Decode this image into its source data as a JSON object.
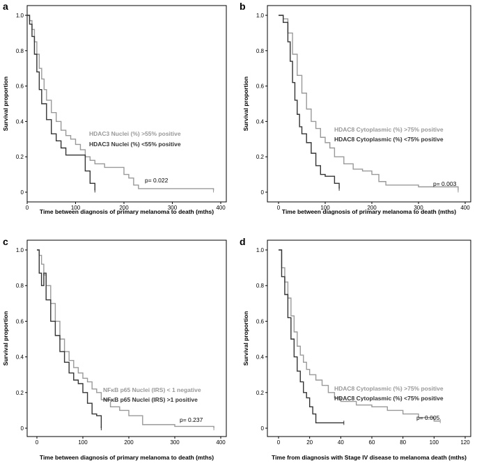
{
  "chart_data": [
    {
      "type": "line",
      "panel": "a",
      "xlabel": "Time between diagnosis of primary melanoma to death (mths)",
      "ylabel": "Survival proportion",
      "xlim": [
        0,
        400
      ],
      "ylim": [
        0,
        1.05
      ],
      "xticks": [
        0,
        100,
        200,
        300,
        400
      ],
      "xtick_labels": [
        "0",
        "100",
        "200",
        "300",
        "400"
      ],
      "yticks": [
        0,
        0.2,
        0.4,
        0.6,
        0.8,
        1.0
      ],
      "ytick_labels": [
        "0",
        "0.2",
        "0.4",
        "0.6",
        "0.8",
        "1.0"
      ],
      "pvalue": "p= 0.022",
      "series": [
        {
          "name": "HDAC3  Nuclei (%) >55% positive",
          "color": "#999999",
          "x": [
            0,
            5,
            10,
            15,
            20,
            25,
            30,
            35,
            40,
            50,
            60,
            70,
            80,
            90,
            100,
            110,
            120,
            130,
            140,
            160,
            180,
            200,
            210,
            220,
            230,
            300,
            385
          ],
          "y": [
            1.0,
            0.97,
            0.92,
            0.85,
            0.78,
            0.7,
            0.64,
            0.58,
            0.52,
            0.45,
            0.4,
            0.35,
            0.32,
            0.3,
            0.27,
            0.24,
            0.2,
            0.18,
            0.16,
            0.14,
            0.14,
            0.1,
            0.08,
            0.04,
            0.02,
            0.02,
            0.01
          ]
        },
        {
          "name": "HDAC3  Nuclei (%) <55% positive",
          "color": "#333333",
          "x": [
            0,
            5,
            10,
            15,
            20,
            25,
            30,
            40,
            50,
            60,
            70,
            80,
            110,
            120,
            130,
            140
          ],
          "y": [
            1.0,
            0.95,
            0.88,
            0.78,
            0.68,
            0.58,
            0.5,
            0.41,
            0.33,
            0.29,
            0.25,
            0.21,
            0.21,
            0.12,
            0.05,
            0.01
          ]
        }
      ]
    },
    {
      "type": "line",
      "panel": "b",
      "xlabel": "Time between diagnosis of primary melanoma to death (mths)",
      "ylabel": "Survival proportion",
      "xlim": [
        0,
        400
      ],
      "ylim": [
        0,
        1.05
      ],
      "xticks": [
        0,
        100,
        200,
        300,
        400
      ],
      "xtick_labels": [
        "0",
        "100",
        "200",
        "300",
        "400"
      ],
      "yticks": [
        0,
        0.2,
        0.4,
        0.6,
        0.8,
        1.0
      ],
      "ytick_labels": [
        "0",
        "0.2",
        "0.4",
        "0.6",
        "0.8",
        "1.0"
      ],
      "pvalue": "p= 0.003",
      "series": [
        {
          "name": "HDAC8  Cytoplasmic (%) >75% positive",
          "color": "#999999",
          "x": [
            0,
            10,
            20,
            30,
            40,
            50,
            60,
            70,
            80,
            90,
            100,
            110,
            120,
            140,
            160,
            180,
            200,
            215,
            230,
            300,
            385
          ],
          "y": [
            1.0,
            0.98,
            0.9,
            0.78,
            0.66,
            0.56,
            0.47,
            0.4,
            0.36,
            0.31,
            0.28,
            0.25,
            0.2,
            0.16,
            0.13,
            0.12,
            0.1,
            0.06,
            0.04,
            0.03,
            0.01
          ]
        },
        {
          "name": "HDAC8  Cytoplasmic (%) <75% positive",
          "color": "#333333",
          "x": [
            0,
            10,
            20,
            25,
            30,
            35,
            40,
            45,
            50,
            60,
            70,
            80,
            90,
            100,
            110,
            120,
            130
          ],
          "y": [
            1.0,
            0.96,
            0.85,
            0.74,
            0.62,
            0.52,
            0.44,
            0.37,
            0.33,
            0.28,
            0.22,
            0.15,
            0.1,
            0.09,
            0.09,
            0.05,
            0.02
          ]
        }
      ]
    },
    {
      "type": "line",
      "panel": "c",
      "xlabel": "Time between diagnosis of primary melanoma to death (mths)",
      "ylabel": "Survival proportion",
      "xlim": [
        0,
        400
      ],
      "ylim": [
        0,
        1.05
      ],
      "xticks": [
        0,
        100,
        200,
        300,
        400
      ],
      "xtick_labels": [
        "0",
        "100",
        "200",
        "300",
        "400"
      ],
      "yticks": [
        0,
        0.2,
        0.4,
        0.6,
        0.8,
        1.0
      ],
      "ytick_labels": [
        "0",
        "0.2",
        "0.4",
        "0.6",
        "0.8",
        "1.0"
      ],
      "pvalue": "p= 0.237",
      "series": [
        {
          "name": "NFκB p65 Nuclei (IRS) < 1 negative",
          "color": "#999999",
          "x": [
            0,
            5,
            10,
            15,
            20,
            30,
            40,
            50,
            60,
            70,
            80,
            90,
            100,
            110,
            120,
            130,
            140,
            160,
            180,
            200,
            230,
            300,
            385
          ],
          "y": [
            1.0,
            0.97,
            0.92,
            0.86,
            0.8,
            0.7,
            0.6,
            0.5,
            0.43,
            0.38,
            0.34,
            0.31,
            0.28,
            0.26,
            0.22,
            0.2,
            0.16,
            0.12,
            0.1,
            0.07,
            0.02,
            0.01,
            0.0
          ]
        },
        {
          "name": "NFκB p65 Nuclei (IRS)  >1 positive",
          "color": "#333333",
          "x": [
            0,
            5,
            10,
            15,
            20,
            30,
            40,
            50,
            60,
            70,
            80,
            90,
            100,
            110,
            120,
            130,
            140
          ],
          "y": [
            1.0,
            0.87,
            0.8,
            0.87,
            0.72,
            0.6,
            0.52,
            0.43,
            0.37,
            0.31,
            0.27,
            0.25,
            0.2,
            0.14,
            0.08,
            0.07,
            0.0
          ]
        }
      ]
    },
    {
      "type": "line",
      "panel": "d",
      "xlabel": "Time from diagnosis with Stage IV disease to melanoma death (mths)",
      "ylabel": "Survival proportion",
      "xlim": [
        0,
        120
      ],
      "ylim": [
        0,
        1.05
      ],
      "xticks": [
        0,
        20,
        40,
        60,
        80,
        100,
        120
      ],
      "xtick_labels": [
        "0",
        "20",
        "40",
        "60",
        "80",
        "100",
        "120"
      ],
      "yticks": [
        0,
        0.2,
        0.4,
        0.6,
        0.8,
        1.0
      ],
      "ytick_labels": [
        "0",
        "0.2",
        "0.4",
        "0.6",
        "0.8",
        "1.0"
      ],
      "pvalue": "p= 0.005",
      "series": [
        {
          "name": "HDAC8  Cytoplasmic (%) >75% positive",
          "color": "#999999",
          "x": [
            0,
            2,
            4,
            6,
            8,
            10,
            12,
            14,
            16,
            18,
            20,
            24,
            28,
            32,
            36,
            40,
            50,
            60,
            70,
            80,
            90,
            100,
            104
          ],
          "y": [
            1.0,
            0.9,
            0.82,
            0.73,
            0.63,
            0.54,
            0.46,
            0.41,
            0.37,
            0.33,
            0.3,
            0.27,
            0.24,
            0.2,
            0.17,
            0.15,
            0.13,
            0.12,
            0.1,
            0.08,
            0.06,
            0.04,
            0.04
          ]
        },
        {
          "name": "HDAC8  Cytoplasmic (%) <75% positive",
          "color": "#333333",
          "x": [
            0,
            2,
            4,
            6,
            8,
            10,
            12,
            14,
            16,
            18,
            20,
            22,
            24,
            30,
            42
          ],
          "y": [
            1.0,
            0.85,
            0.75,
            0.62,
            0.5,
            0.4,
            0.32,
            0.26,
            0.2,
            0.17,
            0.12,
            0.08,
            0.03,
            0.03,
            0.03
          ]
        }
      ]
    }
  ]
}
